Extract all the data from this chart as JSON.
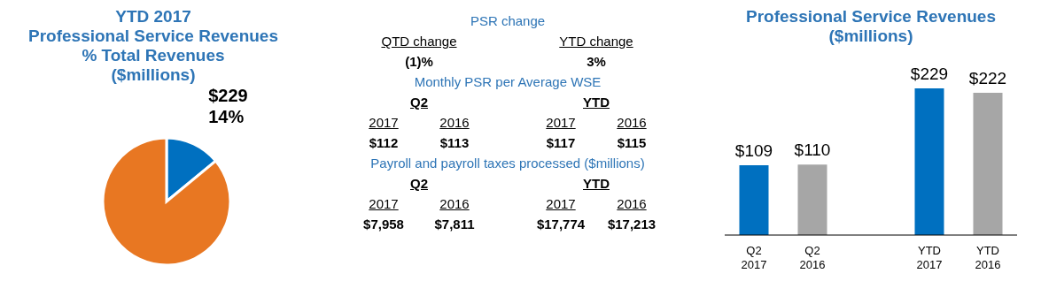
{
  "chart_data": [
    {
      "type": "pie",
      "title": "YTD 2017\nProfessional Service Revenues\n% Total Revenues\n($millions)",
      "categories": [
        null,
        null
      ],
      "values": [
        14,
        86
      ],
      "colors": [
        "#0070c0",
        "#e87722"
      ],
      "value_labels": [
        "$229\n14%",
        null
      ]
    },
    {
      "type": "other",
      "annotations": [
        "PSR change",
        "QTD change",
        "YTD change",
        "(1)%",
        "3%",
        "Monthly PSR per Average WSE",
        "Q2",
        "YTD",
        "2017",
        "2016",
        "2017",
        "2016",
        "$112",
        "$113",
        "$117",
        "$115",
        "Payroll and payroll taxes processed ($millions)",
        "Q2",
        "YTD",
        "2017",
        "2016",
        "2017",
        "2016",
        "$7,958",
        "$7,811",
        "$17,774",
        "$17,213"
      ]
    },
    {
      "type": "bar",
      "title": "Professional Service Revenues\n($millions)",
      "categories": [
        "Q2 2017",
        "Q2 2016",
        null,
        "YTD 2017",
        "YTD 2016"
      ],
      "values": [
        109,
        110,
        null,
        229,
        222
      ],
      "colors": [
        "#0070c0",
        "#a6a6a6",
        null,
        "#0070c0",
        "#a6a6a6"
      ],
      "value_labels": [
        "$109",
        "$110",
        null,
        "$229",
        "$222"
      ]
    }
  ]
}
